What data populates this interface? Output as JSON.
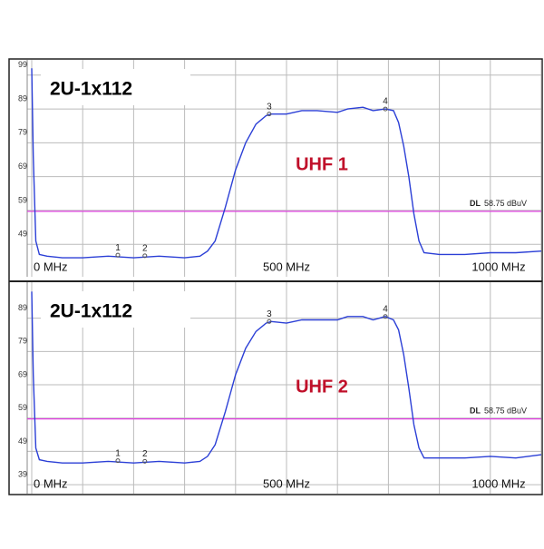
{
  "chart_data": [
    {
      "type": "line",
      "title": "2U-1x112",
      "annotation": "UHF 1",
      "annotation_color": "#c0102a",
      "color": "#2b3fd6",
      "x": [
        0,
        3,
        8,
        15,
        30,
        60,
        100,
        150,
        200,
        250,
        300,
        330,
        345,
        360,
        380,
        400,
        420,
        440,
        460,
        470,
        500,
        530,
        560,
        600,
        620,
        650,
        670,
        694,
        710,
        720,
        730,
        740,
        750,
        760,
        770,
        800,
        850,
        900,
        950,
        1000
      ],
      "values": [
        101,
        75,
        50,
        46,
        45.5,
        45,
        45,
        45.5,
        45,
        45.5,
        45,
        45.5,
        47,
        50,
        60,
        71,
        79,
        84.5,
        87,
        87.5,
        87.5,
        88.5,
        88.5,
        88,
        89,
        89.5,
        88.5,
        89,
        88.5,
        85,
        78,
        69,
        58,
        50,
        46.5,
        46,
        46,
        46.5,
        46.5,
        47
      ],
      "xlim": [
        0,
        1000
      ],
      "ylim": [
        39.4,
        103.5
      ],
      "xgrid": [
        0,
        100,
        200,
        300,
        400,
        500,
        600,
        700,
        800,
        900,
        1000
      ],
      "xticks": [
        {
          "value": 0,
          "label": "0 MHz"
        },
        {
          "value": 500,
          "label": "500 MHz"
        },
        {
          "value": 1000,
          "label": "1000 MHz"
        }
      ],
      "yticks": [
        49,
        59,
        69,
        79,
        89,
        99
      ],
      "markers": [
        {
          "label": "1",
          "x": 169,
          "y": 45.8
        },
        {
          "label": "2",
          "x": 222,
          "y": 45.6
        },
        {
          "label": "3",
          "x": 466,
          "y": 87.5
        },
        {
          "label": "4",
          "x": 694,
          "y": 89
        }
      ],
      "dl": {
        "name": "DL",
        "value": 58.75,
        "value_label": "58.75 dBuV",
        "color": "#e040e0"
      }
    },
    {
      "type": "line",
      "title": "2U-1x112",
      "annotation": "UHF 2",
      "annotation_color": "#c0102a",
      "color": "#2b3fd6",
      "x": [
        0,
        3,
        8,
        15,
        30,
        60,
        100,
        150,
        200,
        250,
        300,
        330,
        345,
        360,
        380,
        400,
        420,
        440,
        460,
        470,
        500,
        530,
        560,
        600,
        620,
        650,
        670,
        694,
        710,
        720,
        730,
        740,
        750,
        760,
        770,
        800,
        850,
        900,
        950,
        1000
      ],
      "values": [
        97,
        72,
        50,
        46.5,
        46,
        45.5,
        45.5,
        46,
        45.5,
        46,
        45.5,
        46,
        47.5,
        51,
        61,
        72,
        80,
        85,
        87.5,
        88,
        87.5,
        88.5,
        88.5,
        88.5,
        89.5,
        89.5,
        88.5,
        89.5,
        88.5,
        85.5,
        78,
        68,
        57,
        50,
        47,
        47,
        47,
        47.5,
        47,
        48
      ],
      "xlim": [
        0,
        1000
      ],
      "ylim": [
        36.3,
        99.8
      ],
      "xgrid": [
        0,
        100,
        200,
        300,
        400,
        500,
        600,
        700,
        800,
        900,
        1000
      ],
      "xticks": [
        {
          "value": 0,
          "label": "0 MHz"
        },
        {
          "value": 500,
          "label": "500 MHz"
        },
        {
          "value": 1000,
          "label": "1000 MHz"
        }
      ],
      "yticks": [
        39,
        49,
        59,
        69,
        79,
        89
      ],
      "markers": [
        {
          "label": "1",
          "x": 169,
          "y": 46.2
        },
        {
          "label": "2",
          "x": 222,
          "y": 46
        },
        {
          "label": "3",
          "x": 466,
          "y": 88
        },
        {
          "label": "4",
          "x": 694,
          "y": 89.5
        }
      ],
      "dl": {
        "name": "DL",
        "value": 58.75,
        "value_label": "58.75 dBuV",
        "color": "#e040e0"
      }
    }
  ]
}
